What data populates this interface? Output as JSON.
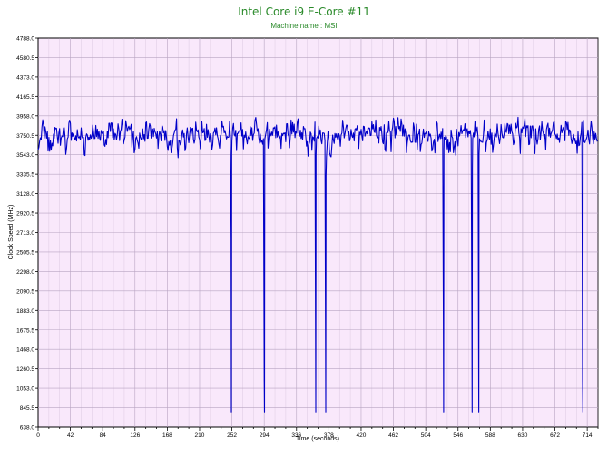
{
  "chart_data": {
    "type": "line",
    "title": "Intel Core i9 E-Core #11",
    "subtitle": "Machine name : MSI",
    "xlabel": "Time (seconds)",
    "ylabel": "Clock Speed (MHz)",
    "xlim": [
      0,
      728
    ],
    "ylim": [
      638.0,
      4788.0
    ],
    "x_ticks": [
      "0",
      "42",
      "84",
      "126",
      "168",
      "210",
      "252",
      "294",
      "336",
      "378",
      "420",
      "462",
      "504",
      "546",
      "588",
      "630",
      "672",
      "714"
    ],
    "y_ticks": [
      "638.0",
      "845.5",
      "1053.0",
      "1260.5",
      "1468.0",
      "1675.5",
      "1883.0",
      "2090.5",
      "2298.0",
      "2505.5",
      "2713.0",
      "2920.5",
      "3128.0",
      "3335.5",
      "3543.0",
      "3750.5",
      "3958.0",
      "4165.5",
      "4373.0",
      "4580.5",
      "4788.0"
    ],
    "grid": true,
    "series": [
      {
        "baseline_mhz": 3750.5,
        "range_mhz": [
          3440,
          4010
        ],
        "sample_interval_s": 1,
        "dips": [
          {
            "x": 251,
            "values": [
              2650,
              790,
              3543
            ]
          },
          {
            "x": 294,
            "values": [
              1130,
              790,
              3700
            ]
          },
          {
            "x": 361,
            "values": [
              790,
              3543
            ]
          },
          {
            "x": 374,
            "values": [
              790,
              3320
            ]
          },
          {
            "x": 527,
            "values": [
              1830,
              790,
              3600
            ]
          },
          {
            "x": 564,
            "values": [
              1830,
              790,
              3400
            ]
          },
          {
            "x": 573,
            "values": [
              790,
              3543
            ]
          },
          {
            "x": 708,
            "values": [
              1130,
              790,
              3750
            ]
          }
        ]
      }
    ]
  },
  "colors": {
    "plot_bg": "#f9e8fb",
    "grid": "#b8a4c2",
    "line": "#0000c8",
    "title": "#2a8a2a",
    "axis": "#000000"
  }
}
